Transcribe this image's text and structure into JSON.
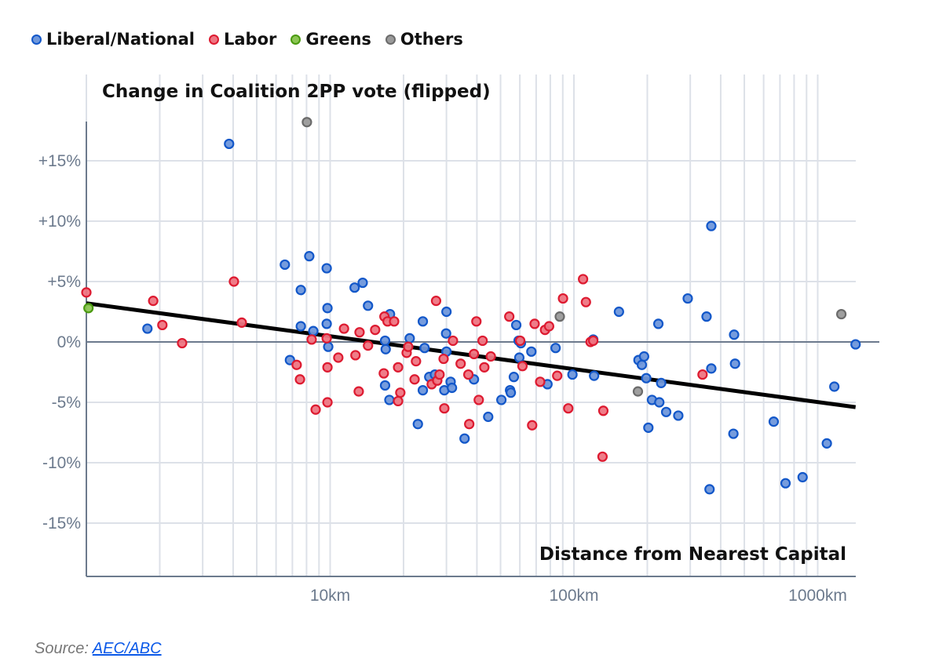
{
  "legend": [
    {
      "label": "Liberal/National",
      "fill": "#6f97db",
      "stroke": "#1257c9"
    },
    {
      "label": "Labor",
      "fill": "#ee7582",
      "stroke": "#dd1a30"
    },
    {
      "label": "Greens",
      "fill": "#8cc654",
      "stroke": "#4a9a10"
    },
    {
      "label": "Others",
      "fill": "#9a9a9a",
      "stroke": "#6b6b6b"
    }
  ],
  "source": {
    "prefix": "Source:",
    "link": "AEC/ABC"
  },
  "chart_data": {
    "type": "scatter",
    "title": "Change in Coalition 2PP vote (flipped)",
    "xlabel": "Distance from Nearest Capital",
    "ylabel": "",
    "xscale": "log",
    "xlim": [
      1,
      1430
    ],
    "ylim": [
      -19.5,
      18.5
    ],
    "x_ticks": [
      {
        "value": 10,
        "label": "10km"
      },
      {
        "value": 100,
        "label": "100km"
      },
      {
        "value": 1000,
        "label": "1000km"
      }
    ],
    "y_ticks": [
      {
        "value": 15,
        "label": "+15%"
      },
      {
        "value": 10,
        "label": "+10%"
      },
      {
        "value": 5,
        "label": "+5%"
      },
      {
        "value": 0,
        "label": "0%"
      },
      {
        "value": -5,
        "label": "-5%"
      },
      {
        "value": -10,
        "label": "-10%"
      },
      {
        "value": -15,
        "label": "-15%"
      }
    ],
    "grid": true,
    "legend_position": "top-left",
    "trendline": {
      "x": [
        1,
        1430
      ],
      "y": [
        3.2,
        -5.4
      ]
    },
    "series": [
      {
        "name": "Liberal/National",
        "points": [
          [
            3.85,
            16.4
          ],
          [
            1.78,
            1.1
          ],
          [
            6.52,
            6.4
          ],
          [
            8.21,
            7.1
          ],
          [
            7.58,
            4.3
          ],
          [
            9.68,
            6.1
          ],
          [
            6.84,
            -1.5
          ],
          [
            7.58,
            1.3
          ],
          [
            8.53,
            0.9
          ],
          [
            9.68,
            1.5
          ],
          [
            9.75,
            2.8
          ],
          [
            9.82,
            -0.4
          ],
          [
            12.6,
            4.5
          ],
          [
            13.6,
            4.9
          ],
          [
            14.3,
            3.0
          ],
          [
            16.8,
            0.1
          ],
          [
            16.9,
            -0.6
          ],
          [
            16.8,
            -3.6
          ],
          [
            17.6,
            2.3
          ],
          [
            17.5,
            -4.8
          ],
          [
            21.2,
            0.3
          ],
          [
            22.9,
            -6.8
          ],
          [
            24.0,
            1.7
          ],
          [
            24.0,
            -4.0
          ],
          [
            24.4,
            -0.5
          ],
          [
            25.5,
            -2.9
          ],
          [
            26.9,
            -2.7
          ],
          [
            29.4,
            -4.0
          ],
          [
            29.9,
            0.7
          ],
          [
            30.0,
            2.5
          ],
          [
            30.0,
            -0.8
          ],
          [
            31.2,
            -3.3
          ],
          [
            31.6,
            -3.8
          ],
          [
            35.6,
            -8.0
          ],
          [
            38.9,
            -3.1
          ],
          [
            44.5,
            -6.2
          ],
          [
            50.4,
            -4.8
          ],
          [
            54.7,
            -4.0
          ],
          [
            55.1,
            -4.2
          ],
          [
            58.0,
            1.4
          ],
          [
            59.3,
            0.1
          ],
          [
            59.7,
            -1.3
          ],
          [
            60.6,
            -0.1
          ],
          [
            56.7,
            -2.9
          ],
          [
            66.9,
            -0.8
          ],
          [
            77.9,
            -3.5
          ],
          [
            84.1,
            -0.5
          ],
          [
            98.6,
            -2.7
          ],
          [
            120,
            0.2
          ],
          [
            121,
            -2.8
          ],
          [
            153,
            2.5
          ],
          [
            184,
            -1.5
          ],
          [
            190,
            -1.9
          ],
          [
            194,
            -1.2
          ],
          [
            198,
            -3.0
          ],
          [
            202,
            -7.1
          ],
          [
            209,
            -4.8
          ],
          [
            222,
            1.5
          ],
          [
            224,
            -5.0
          ],
          [
            228,
            -3.4
          ],
          [
            239,
            -5.8
          ],
          [
            268,
            -6.1
          ],
          [
            293,
            3.6
          ],
          [
            350,
            2.1
          ],
          [
            366,
            9.6
          ],
          [
            360,
            -12.2
          ],
          [
            366,
            -2.2
          ],
          [
            454,
            0.6
          ],
          [
            458,
            -1.8
          ],
          [
            451,
            -7.6
          ],
          [
            660,
            -6.6
          ],
          [
            738,
            -11.7
          ],
          [
            867,
            -11.2
          ],
          [
            1090,
            -8.4
          ],
          [
            1170,
            -3.7
          ],
          [
            1430,
            -0.2
          ]
        ]
      },
      {
        "name": "Labor",
        "points": [
          [
            1.0,
            4.1
          ],
          [
            1.88,
            3.4
          ],
          [
            2.05,
            1.4
          ],
          [
            2.47,
            -0.1
          ],
          [
            4.03,
            5.0
          ],
          [
            4.34,
            1.6
          ],
          [
            7.29,
            -1.9
          ],
          [
            7.52,
            -3.1
          ],
          [
            8.4,
            0.2
          ],
          [
            8.72,
            -5.6
          ],
          [
            9.68,
            0.3
          ],
          [
            9.75,
            -2.1
          ],
          [
            9.75,
            -5.0
          ],
          [
            10.8,
            -1.3
          ],
          [
            11.4,
            1.1
          ],
          [
            12.7,
            -1.1
          ],
          [
            13.1,
            -4.1
          ],
          [
            13.2,
            0.8
          ],
          [
            14.3,
            -0.3
          ],
          [
            15.3,
            1.0
          ],
          [
            16.6,
            -2.6
          ],
          [
            16.7,
            2.1
          ],
          [
            17.2,
            1.7
          ],
          [
            18.3,
            1.7
          ],
          [
            19.0,
            -2.1
          ],
          [
            19.0,
            -4.9
          ],
          [
            19.4,
            -4.2
          ],
          [
            20.6,
            -0.9
          ],
          [
            20.9,
            -0.4
          ],
          [
            22.2,
            -3.1
          ],
          [
            22.5,
            -1.6
          ],
          [
            26.1,
            -3.5
          ],
          [
            27.2,
            3.4
          ],
          [
            27.5,
            -3.2
          ],
          [
            28.1,
            -2.7
          ],
          [
            29.2,
            -1.4
          ],
          [
            29.4,
            -5.5
          ],
          [
            31.9,
            0.1
          ],
          [
            34.3,
            -1.8
          ],
          [
            36.9,
            -2.7
          ],
          [
            37.2,
            -6.8
          ],
          [
            38.9,
            -1.0
          ],
          [
            39.8,
            1.7
          ],
          [
            40.7,
            -4.8
          ],
          [
            42.2,
            0.1
          ],
          [
            42.9,
            -2.1
          ],
          [
            45.6,
            -1.2
          ],
          [
            54.3,
            2.1
          ],
          [
            60.2,
            0.1
          ],
          [
            61.5,
            -2.0
          ],
          [
            67.4,
            -6.9
          ],
          [
            69.0,
            1.5
          ],
          [
            72.7,
            -3.3
          ],
          [
            76.1,
            1.0
          ],
          [
            79.1,
            1.3
          ],
          [
            85.4,
            -2.8
          ],
          [
            90.2,
            3.6
          ],
          [
            94.8,
            -5.5
          ],
          [
            109,
            5.2
          ],
          [
            112,
            3.3
          ],
          [
            117,
            0.0
          ],
          [
            120,
            0.1
          ],
          [
            132,
            -5.7
          ],
          [
            131,
            -9.5
          ],
          [
            337,
            -2.7
          ]
        ]
      },
      {
        "name": "Greens",
        "points": [
          [
            1.02,
            2.8
          ]
        ]
      },
      {
        "name": "Others",
        "points": [
          [
            8.03,
            18.2
          ],
          [
            87.5,
            2.1
          ],
          [
            183,
            -4.1
          ],
          [
            1250,
            2.3
          ]
        ]
      }
    ]
  }
}
